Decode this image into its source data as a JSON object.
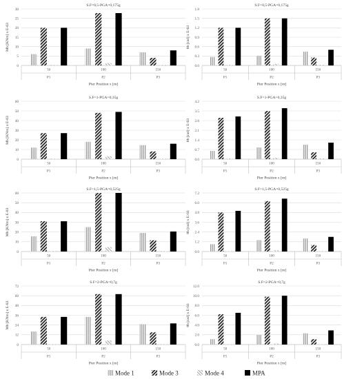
{
  "legend": {
    "entries": [
      {
        "label": "Mode 1",
        "pattern": "mode1"
      },
      {
        "label": "Mode 3",
        "pattern": "mode3"
      },
      {
        "label": "Mode 4",
        "pattern": "mode4"
      },
      {
        "label": "MPA",
        "pattern": "mpa"
      }
    ]
  },
  "colors": {
    "mode1": "#a6a6a6",
    "mode3": "#262626",
    "mode4": "#d0d0d0",
    "mpa": "#000000",
    "grid": "#d9d9d9",
    "axis_text": "#595959"
  },
  "chart_data": [
    {
      "type": "bar",
      "title": "S.F=0,5-PGA=0,175g",
      "ylabel": "Mb [KNm] x E-03",
      "xlabel": "Pier Position x [m]",
      "ylim": [
        0,
        30
      ],
      "yticks": [
        0,
        5,
        10,
        15,
        20,
        25,
        30
      ],
      "yticklabels": [
        "0",
        "5",
        "10",
        "15",
        "20",
        "25",
        "30"
      ],
      "categories": [
        "50",
        "100",
        "150"
      ],
      "groups": [
        "P1",
        "P2",
        "P3"
      ],
      "series": [
        {
          "name": "Mode 1",
          "values": [
            6,
            9,
            7
          ]
        },
        {
          "name": "Mode 3",
          "values": [
            20,
            27.8,
            4
          ]
        },
        {
          "name": "Mode 4",
          "values": [
            0.3,
            1.2,
            0.3
          ]
        },
        {
          "name": "MPA",
          "values": [
            20,
            27.8,
            8
          ]
        }
      ]
    },
    {
      "type": "bar",
      "title": "S.F=0,5-PGA=0,175g",
      "ylabel": "θb [rad] x E-03",
      "xlabel": "Pier Position x [m]",
      "ylim": [
        0,
        1.8
      ],
      "yticks": [
        0,
        0.3,
        0.6,
        0.9,
        1.2,
        1.5,
        1.8
      ],
      "yticklabels": [
        "0.0",
        "0.3",
        "0.6",
        "0.9",
        "1.2",
        "1.5",
        "1.8"
      ],
      "categories": [
        "50",
        "100",
        "150"
      ],
      "groups": [
        "P1",
        "P2",
        "P3"
      ],
      "series": [
        {
          "name": "Mode 1",
          "values": [
            0.27,
            0.31,
            0.44
          ]
        },
        {
          "name": "Mode 3",
          "values": [
            1.2,
            1.5,
            0.25
          ]
        },
        {
          "name": "Mode 4",
          "values": [
            0.02,
            0.05,
            0.02
          ]
        },
        {
          "name": "MPA",
          "values": [
            1.2,
            1.5,
            0.5
          ]
        }
      ]
    },
    {
      "type": "bar",
      "title": "S.F=1-PGA=0,35g",
      "ylabel": "Mb [KNm] x E-03",
      "xlabel": "Pier Position x [m]",
      "ylim": [
        0,
        60
      ],
      "yticks": [
        0,
        10,
        20,
        30,
        40,
        50,
        60
      ],
      "yticklabels": [
        "0",
        "10",
        "20",
        "30",
        "40",
        "50",
        "60"
      ],
      "categories": [
        "50",
        "100",
        "150"
      ],
      "groups": [
        "P1",
        "P2",
        "P3"
      ],
      "series": [
        {
          "name": "Mode 1",
          "values": [
            12,
            18,
            14.5
          ]
        },
        {
          "name": "Mode 3",
          "values": [
            27,
            48,
            8
          ]
        },
        {
          "name": "Mode 4",
          "values": [
            0.5,
            3,
            0.5
          ]
        },
        {
          "name": "MPA",
          "values": [
            27,
            49,
            16
          ]
        }
      ]
    },
    {
      "type": "bar",
      "title": "S.F=1-PGA=0,35g",
      "ylabel": "θb [rad] x E-03",
      "xlabel": "Pier Position x [m]",
      "ylim": [
        0,
        4.2
      ],
      "yticks": [
        0,
        0.7,
        1.4,
        2.1,
        2.8,
        3.5,
        4.2
      ],
      "yticklabels": [
        "0.0",
        "0.7",
        "1.4",
        "2.1",
        "2.8",
        "3.5",
        "4.2"
      ],
      "categories": [
        "50",
        "100",
        "150"
      ],
      "groups": [
        "P1",
        "P2",
        "P3"
      ],
      "series": [
        {
          "name": "Mode 1",
          "values": [
            0.6,
            0.85,
            1.05
          ]
        },
        {
          "name": "Mode 3",
          "values": [
            3.0,
            3.5,
            0.5
          ]
        },
        {
          "name": "Mode 4",
          "values": [
            0.05,
            0.1,
            0.05
          ]
        },
        {
          "name": "MPA",
          "values": [
            3.1,
            3.7,
            1.2
          ]
        }
      ]
    },
    {
      "type": "bar",
      "title": "S.F=1,5-PGA=0,525g",
      "ylabel": "Mb [KNm] x E-03",
      "xlabel": "Pier Position x [m]",
      "ylim": [
        0,
        60
      ],
      "yticks": [
        0,
        10,
        20,
        30,
        40,
        50,
        60
      ],
      "yticklabels": [
        "0",
        "10",
        "20",
        "30",
        "40",
        "50",
        "60"
      ],
      "categories": [
        "50",
        "100",
        "150"
      ],
      "groups": [
        "P1",
        "P2",
        "P3"
      ],
      "series": [
        {
          "name": "Mode 1",
          "values": [
            15.5,
            25,
            19
          ]
        },
        {
          "name": "Mode 3",
          "values": [
            31,
            60,
            11.5
          ]
        },
        {
          "name": "Mode 4",
          "values": [
            0.5,
            4.5,
            0.5
          ]
        },
        {
          "name": "MPA",
          "values": [
            31,
            60,
            20.5
          ]
        }
      ]
    },
    {
      "type": "bar",
      "title": "S.F=1,5-PGA=0,525g",
      "ylabel": "θb [rad] x E-03",
      "xlabel": "Pier Position x [m]",
      "ylim": [
        0,
        7.2
      ],
      "yticks": [
        0,
        1.2,
        2.4,
        3.6,
        4.8,
        6.0,
        7.2
      ],
      "yticklabels": [
        "0.0",
        "1.2",
        "2.4",
        "3.6",
        "4.8",
        "6.0",
        "7.2"
      ],
      "categories": [
        "50",
        "100",
        "150"
      ],
      "groups": [
        "P1",
        "P2",
        "P3"
      ],
      "series": [
        {
          "name": "Mode 1",
          "values": [
            0.9,
            1.4,
            1.6
          ]
        },
        {
          "name": "Mode 3",
          "values": [
            4.8,
            6.2,
            0.8
          ]
        },
        {
          "name": "Mode 4",
          "values": [
            0.05,
            0.15,
            0.05
          ]
        },
        {
          "name": "MPA",
          "values": [
            5.0,
            6.5,
            1.8
          ]
        }
      ]
    },
    {
      "type": "bar",
      "title": "S.F=2-PGA=0,7g",
      "ylabel": "Mb [KNm] x E-03",
      "xlabel": "Pier Position x [m]",
      "ylim": [
        0,
        72
      ],
      "yticks": [
        0,
        12,
        24,
        36,
        48,
        60,
        72
      ],
      "yticklabels": [
        "0",
        "12",
        "24",
        "36",
        "48",
        "60",
        "72"
      ],
      "categories": [
        "50",
        "100",
        "150"
      ],
      "groups": [
        "P1",
        "P2",
        "P3"
      ],
      "series": [
        {
          "name": "Mode 1",
          "values": [
            16,
            34,
            25
          ]
        },
        {
          "name": "Mode 3",
          "values": [
            34,
            62,
            15
          ]
        },
        {
          "name": "Mode 4",
          "values": [
            0.5,
            5,
            0.5
          ]
        },
        {
          "name": "MPA",
          "values": [
            34,
            62,
            26
          ]
        }
      ]
    },
    {
      "type": "bar",
      "title": "S.F=2-PGA=0,7g",
      "ylabel": "θb [rad] x E-03",
      "xlabel": "Pier Position x [m]",
      "ylim": [
        0,
        12
      ],
      "yticks": [
        0,
        2,
        4,
        6,
        8,
        10,
        12
      ],
      "yticklabels": [
        "0.0",
        "2.0",
        "4.0",
        "6.0",
        "8.0",
        "10.0",
        "12.0"
      ],
      "categories": [
        "50",
        "100",
        "150"
      ],
      "groups": [
        "P1",
        "P2",
        "P3"
      ],
      "series": [
        {
          "name": "Mode 1",
          "values": [
            1.1,
            2.0,
            2.3
          ]
        },
        {
          "name": "Mode 3",
          "values": [
            6.2,
            9.8,
            1.1
          ]
        },
        {
          "name": "Mode 4",
          "values": [
            0.05,
            0.2,
            0.05
          ]
        },
        {
          "name": "MPA",
          "values": [
            6.5,
            10.0,
            2.9
          ]
        }
      ]
    }
  ]
}
